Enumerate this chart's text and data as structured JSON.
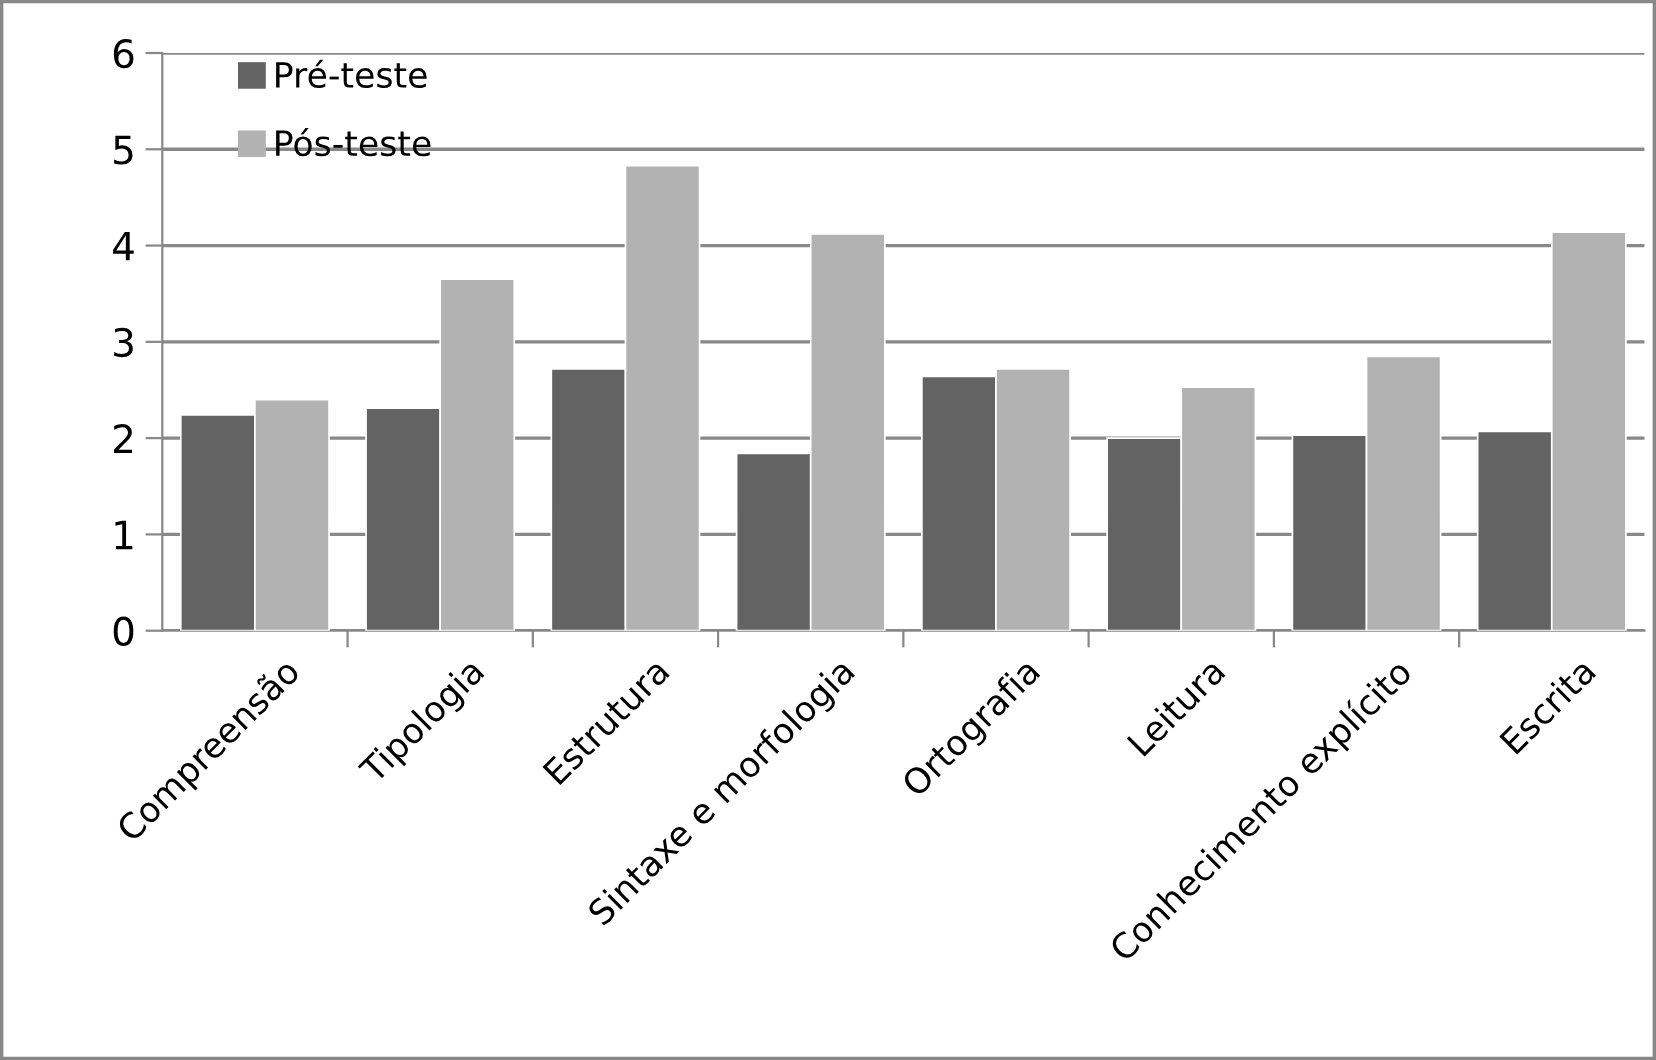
{
  "chart_data": {
    "type": "bar",
    "categories": [
      "Compreensão",
      "Tipologia",
      "Estrutura",
      "Sintaxe e morfologia",
      "Ortografia",
      "Leitura",
      "Conhecimento explícito",
      "Escrita"
    ],
    "series": [
      {
        "name": "Pré-teste",
        "color": "#636363",
        "values": [
          2.24,
          2.31,
          2.72,
          1.84,
          2.64,
          2.0,
          2.03,
          2.07
        ]
      },
      {
        "name": "Pós-teste",
        "color": "#b2b2b2",
        "values": [
          2.4,
          3.65,
          4.83,
          4.12,
          2.72,
          2.53,
          2.85,
          4.14
        ]
      }
    ],
    "ylim": [
      0,
      6
    ],
    "yticks": [
      0,
      1,
      2,
      3,
      4,
      5,
      6
    ],
    "grid": "y",
    "legend": "top left"
  }
}
